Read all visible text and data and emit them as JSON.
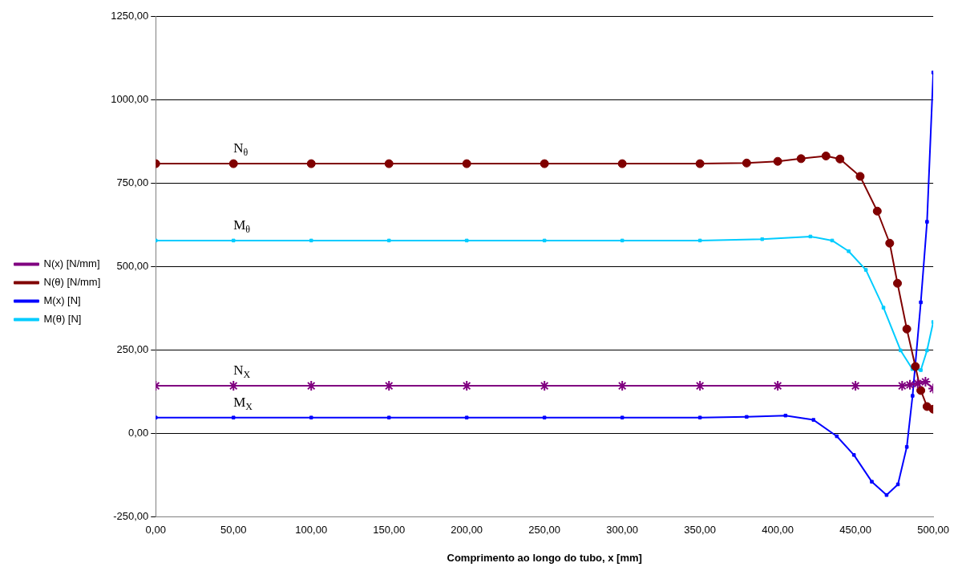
{
  "chart_data": {
    "type": "line",
    "xlabel": "Comprimento ao longo do tubo, x [mm]",
    "xlim": [
      0,
      500
    ],
    "ylim": [
      -250,
      1250
    ],
    "xticks": [
      {
        "value": 0,
        "label": "0,00"
      },
      {
        "value": 50,
        "label": "50,00"
      },
      {
        "value": 100,
        "label": "100,00"
      },
      {
        "value": 150,
        "label": "150,00"
      },
      {
        "value": 200,
        "label": "200,00"
      },
      {
        "value": 250,
        "label": "250,00"
      },
      {
        "value": 300,
        "label": "300,00"
      },
      {
        "value": 350,
        "label": "350,00"
      },
      {
        "value": 400,
        "label": "400,00"
      },
      {
        "value": 450,
        "label": "450,00"
      },
      {
        "value": 500,
        "label": "500,00"
      }
    ],
    "yticks": [
      {
        "value": -250,
        "label": "-250,00"
      },
      {
        "value": 0,
        "label": "0,00"
      },
      {
        "value": 250,
        "label": "250,00"
      },
      {
        "value": 500,
        "label": "500,00"
      },
      {
        "value": 750,
        "label": "750,00"
      },
      {
        "value": 1000,
        "label": "1000,00"
      },
      {
        "value": 1250,
        "label": "1250,00"
      }
    ],
    "grid": "y",
    "legend": "left",
    "line_style": "solid",
    "annotations": [
      "N$_{X}$",
      "N$_{θ}$",
      "M$_{X}$",
      "M$_{θ}$"
    ],
    "series": [
      {
        "name": "N(x) [N/mm]",
        "color": "#800080",
        "marker": "cross",
        "x": [
          0,
          50,
          100,
          150,
          200,
          250,
          300,
          350,
          400,
          450,
          480,
          485,
          490,
          495,
          500
        ],
        "values": [
          143,
          143,
          143,
          143,
          143,
          143,
          143,
          143,
          143,
          143,
          143,
          146,
          150,
          155,
          135
        ]
      },
      {
        "name": "N(θ) [N/mm]",
        "color": "#800000",
        "marker": "circle",
        "x": [
          0,
          50,
          100,
          150,
          200,
          250,
          300,
          350,
          380,
          400,
          415,
          431,
          440,
          453,
          464,
          472,
          477,
          483,
          488.5,
          492,
          496,
          500
        ],
        "values": [
          808,
          808,
          808,
          808,
          808,
          808,
          808,
          808,
          810,
          815,
          823,
          831,
          822,
          770,
          666,
          570,
          450,
          313,
          201,
          129,
          81,
          73
        ]
      },
      {
        "name": "M(x) [N]",
        "color": "#0000ff",
        "marker": "square",
        "x": [
          0,
          50,
          100,
          150,
          200,
          250,
          300,
          350,
          380,
          405,
          423,
          438,
          449,
          460.5,
          470,
          477.3,
          483,
          486.7,
          492,
          496,
          500
        ],
        "values": [
          48,
          48,
          48,
          48,
          48,
          48,
          48,
          48,
          50,
          54,
          41,
          -8,
          -64,
          -144,
          -184,
          -152,
          -40,
          113,
          393,
          634,
          1081
        ]
      },
      {
        "name": "M(θ) [N]",
        "color": "#00ccff",
        "marker": "square",
        "x": [
          0,
          50,
          100,
          150,
          200,
          250,
          300,
          350,
          390,
          421,
          435,
          445.6,
          456.7,
          468,
          479,
          486.6,
          492,
          496,
          500
        ],
        "values": [
          578,
          578,
          578,
          578,
          578,
          578,
          578,
          578,
          582,
          590,
          578,
          546,
          490,
          377,
          249,
          193,
          190,
          249,
          334
        ]
      }
    ]
  }
}
